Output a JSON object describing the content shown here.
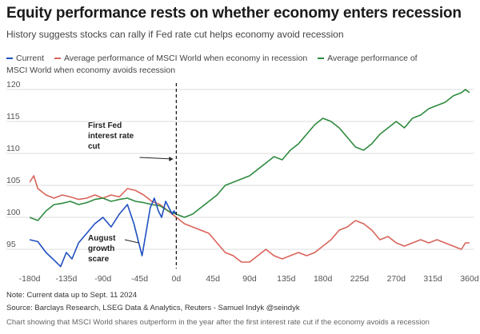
{
  "header": {
    "title": "Equity performance rests on whether economy enters recession",
    "subtitle": "History suggests stocks can rally if Fed rate cut helps economy avoid recession"
  },
  "footer": {
    "note": "Note: Current data up to Sept. 11 2024",
    "source": "Source: Barclays Research, LSEG Data & Analytics, Reuters - Samuel Indyk @seindyk",
    "alt": "Chart showing that MSCI World shares outperform in the year after the first interest rate cut if the economy avoids a recession"
  },
  "chart_data": {
    "type": "line",
    "title": "Equity performance rests on whether economy enters recession",
    "xlabel": "",
    "ylabel": "",
    "xlim": [
      -185,
      365
    ],
    "ylim": [
      92,
      121
    ],
    "x_ticks": [
      -180,
      -135,
      -90,
      -45,
      0,
      45,
      90,
      135,
      180,
      225,
      270,
      315,
      360
    ],
    "x_tick_labels": [
      "-180d",
      "-135d",
      "-90d",
      "-45d",
      "0d",
      "45d",
      "90d",
      "135d",
      "180d",
      "225d",
      "270d",
      "315d",
      "360d"
    ],
    "y_ticks": [
      95,
      100,
      105,
      110,
      115,
      120
    ],
    "y_tick_labels": [
      "95",
      "100",
      "105",
      "110",
      "115",
      "120"
    ],
    "grid": "horizontal",
    "legend_position": "top",
    "series": [
      {
        "name": "Current",
        "color": "#1f4fc1",
        "x": [
          -180,
          -170,
          -160,
          -150,
          -142,
          -135,
          -128,
          -120,
          -110,
          -100,
          -90,
          -80,
          -70,
          -60,
          -52,
          -46,
          -42,
          -38,
          -32,
          -27,
          -22,
          -18,
          -13,
          -9,
          -5,
          -3,
          0
        ],
        "y": [
          96.5,
          96.2,
          94.5,
          93.3,
          92.3,
          94.5,
          93.5,
          96.0,
          97.5,
          99.0,
          100.0,
          98.5,
          100.5,
          102.0,
          99.0,
          96.0,
          94.0,
          97.0,
          101.5,
          103.0,
          101.0,
          100.0,
          102.5,
          101.5,
          100.5,
          101.0,
          100.5
        ]
      },
      {
        "name": "Average performance of MSCI World when economy in recession",
        "color": "#d9645a",
        "x": [
          -180,
          -175,
          -170,
          -160,
          -150,
          -140,
          -130,
          -120,
          -110,
          -100,
          -90,
          -80,
          -70,
          -60,
          -50,
          -40,
          -30,
          -20,
          -10,
          0,
          10,
          20,
          30,
          40,
          50,
          60,
          70,
          80,
          90,
          100,
          110,
          120,
          130,
          140,
          150,
          160,
          170,
          180,
          190,
          200,
          210,
          220,
          230,
          240,
          250,
          260,
          270,
          280,
          290,
          300,
          310,
          320,
          330,
          340,
          350,
          355,
          360
        ],
        "y": [
          105.5,
          106.5,
          104.5,
          103.5,
          103.0,
          103.5,
          103.2,
          102.8,
          103.0,
          103.5,
          103.0,
          103.5,
          103.2,
          104.5,
          104.2,
          103.5,
          102.5,
          102.0,
          101.0,
          100.0,
          99.0,
          98.5,
          98.0,
          97.5,
          96.0,
          94.5,
          94.0,
          93.0,
          93.0,
          94.0,
          95.0,
          94.0,
          93.5,
          94.0,
          94.5,
          94.0,
          94.5,
          95.5,
          96.5,
          98.0,
          98.5,
          99.5,
          99.0,
          98.0,
          96.5,
          97.0,
          96.0,
          95.5,
          96.0,
          96.5,
          96.0,
          96.5,
          96.0,
          95.5,
          95.0,
          96.0,
          96.0
        ]
      },
      {
        "name": "Average performance of MSCI World when economy avoids recession",
        "color": "#2e8b3e",
        "x": [
          -180,
          -170,
          -160,
          -150,
          -140,
          -130,
          -120,
          -110,
          -100,
          -90,
          -80,
          -70,
          -60,
          -50,
          -40,
          -30,
          -20,
          -10,
          0,
          10,
          20,
          30,
          40,
          50,
          60,
          70,
          80,
          90,
          100,
          110,
          120,
          130,
          140,
          150,
          160,
          170,
          180,
          190,
          200,
          210,
          220,
          230,
          240,
          250,
          260,
          270,
          280,
          290,
          300,
          310,
          320,
          330,
          340,
          350,
          355,
          360
        ],
        "y": [
          100.0,
          99.5,
          101.0,
          102.0,
          102.2,
          102.5,
          102.0,
          102.3,
          102.8,
          103.0,
          102.5,
          102.8,
          103.0,
          102.5,
          102.3,
          102.0,
          101.8,
          101.0,
          100.5,
          100.0,
          100.5,
          101.5,
          102.5,
          103.5,
          105.0,
          105.5,
          106.0,
          106.5,
          107.5,
          108.5,
          109.5,
          109.0,
          110.5,
          111.5,
          113.0,
          114.5,
          115.5,
          115.0,
          114.0,
          112.5,
          111.0,
          110.5,
          111.5,
          113.0,
          114.0,
          115.0,
          114.0,
          115.5,
          116.0,
          117.0,
          117.5,
          118.0,
          119.0,
          119.5,
          120.0,
          119.5
        ]
      }
    ],
    "annotations": [
      {
        "lines": [
          "First Fed",
          "interest rate",
          "cut"
        ]
      },
      {
        "lines": [
          "August",
          "growth",
          "scare"
        ]
      }
    ]
  }
}
